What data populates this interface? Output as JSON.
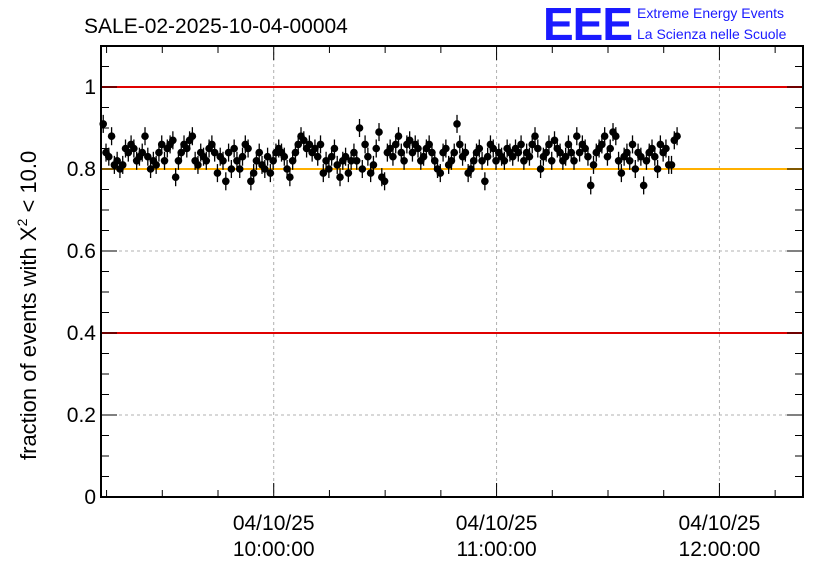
{
  "chart_data": {
    "type": "scatter",
    "title": "SALE-02-2025-10-04-00004",
    "ylabel_prefix": "fraction of events with ",
    "ylabel_chi": "X",
    "ylabel_sup": "2",
    "ylabel_suffix": " < 10.0",
    "xlabel": "",
    "ylim": [
      0,
      1.1
    ],
    "xlim_hours": [
      9.225,
      12.375
    ],
    "y_ticks": [
      "0",
      "0.2",
      "0.4",
      "0.6",
      "0.8",
      "1"
    ],
    "y_tick_values": [
      0,
      0.2,
      0.4,
      0.6,
      0.8,
      1.0
    ],
    "x_ticks": [
      {
        "hour": 10,
        "date": "04/10/25",
        "time": "10:00:00"
      },
      {
        "hour": 11,
        "date": "04/10/25",
        "time": "11:00:00"
      },
      {
        "hour": 12,
        "date": "04/10/25",
        "time": "12:00:00"
      }
    ],
    "reference_lines": [
      {
        "value": 1.0,
        "color": "#e00000"
      },
      {
        "value": 0.4,
        "color": "#e00000"
      },
      {
        "value": 0.8,
        "color": "#ffb000"
      }
    ],
    "point_color": "#000000",
    "error_bar": 0.022,
    "x_start_hours": 9.235,
    "x_step_hours": 0.0125,
    "series": [
      {
        "name": "fraction",
        "values": [
          0.91,
          0.84,
          0.83,
          0.88,
          0.81,
          0.82,
          0.8,
          0.81,
          0.85,
          0.84,
          0.86,
          0.85,
          0.82,
          0.83,
          0.84,
          0.88,
          0.83,
          0.8,
          0.82,
          0.81,
          0.84,
          0.86,
          0.82,
          0.85,
          0.86,
          0.87,
          0.78,
          0.82,
          0.84,
          0.86,
          0.85,
          0.87,
          0.88,
          0.82,
          0.81,
          0.84,
          0.83,
          0.82,
          0.85,
          0.86,
          0.84,
          0.79,
          0.83,
          0.82,
          0.77,
          0.84,
          0.8,
          0.85,
          0.82,
          0.8,
          0.83,
          0.86,
          0.85,
          0.77,
          0.79,
          0.82,
          0.84,
          0.81,
          0.8,
          0.83,
          0.79,
          0.82,
          0.84,
          0.85,
          0.84,
          0.83,
          0.8,
          0.78,
          0.82,
          0.84,
          0.86,
          0.88,
          0.87,
          0.85,
          0.86,
          0.84,
          0.85,
          0.83,
          0.86,
          0.79,
          0.82,
          0.8,
          0.83,
          0.85,
          0.81,
          0.78,
          0.82,
          0.83,
          0.79,
          0.82,
          0.84,
          0.82,
          0.9,
          0.8,
          0.86,
          0.83,
          0.79,
          0.81,
          0.85,
          0.89,
          0.78,
          0.77,
          0.84,
          0.85,
          0.83,
          0.86,
          0.88,
          0.84,
          0.82,
          0.86,
          0.87,
          0.84,
          0.86,
          0.85,
          0.82,
          0.83,
          0.85,
          0.86,
          0.84,
          0.82,
          0.8,
          0.79,
          0.84,
          0.85,
          0.81,
          0.82,
          0.84,
          0.91,
          0.86,
          0.83,
          0.84,
          0.79,
          0.8,
          0.82,
          0.84,
          0.85,
          0.82,
          0.77,
          0.83,
          0.86,
          0.85,
          0.82,
          0.84,
          0.83,
          0.82,
          0.85,
          0.84,
          0.83,
          0.85,
          0.84,
          0.86,
          0.82,
          0.84,
          0.83,
          0.86,
          0.88,
          0.85,
          0.8,
          0.83,
          0.84,
          0.86,
          0.82,
          0.87,
          0.85,
          0.84,
          0.82,
          0.83,
          0.86,
          0.84,
          0.82,
          0.88,
          0.84,
          0.86,
          0.85,
          0.83,
          0.76,
          0.81,
          0.84,
          0.85,
          0.86,
          0.88,
          0.83,
          0.85,
          0.89,
          0.88,
          0.82,
          0.79,
          0.83,
          0.84,
          0.82,
          0.86,
          0.8,
          0.84,
          0.83,
          0.76,
          0.82,
          0.84,
          0.85,
          0.83,
          0.8,
          0.86,
          0.84,
          0.85,
          0.81,
          0.81,
          0.87,
          0.88
        ]
      }
    ]
  },
  "logo": {
    "mark": "EEE",
    "line1": "Extreme Energy Events",
    "line2": "La Scienza nelle Scuole"
  }
}
